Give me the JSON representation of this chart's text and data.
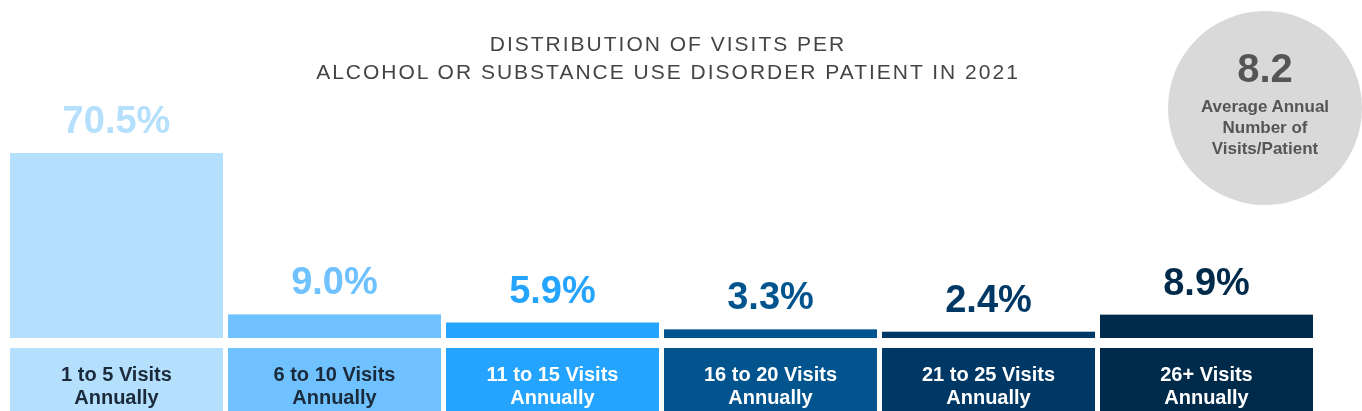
{
  "chart_data": {
    "type": "bar",
    "title": "DISTRIBUTION OF VISITS PER",
    "subtitle": "ALCOHOL OR SUBSTANCE USE DISORDER PATIENT IN 2021",
    "categories": [
      "1 to 5 Visits Annually",
      "6 to 10 Visits Annually",
      "11 to 15 Visits Annually",
      "16 to 20 Visits Annually",
      "21 to 25 Visits Annually",
      "26+ Visits Annually"
    ],
    "values": [
      70.5,
      9.0,
      5.9,
      3.3,
      2.4,
      8.9
    ],
    "value_labels": [
      "70.5%",
      "9.0%",
      "5.9%",
      "3.3%",
      "2.4%",
      "8.9%"
    ],
    "colors": [
      "#b5e0fd",
      "#6fc2ff",
      "#25a4ff",
      "#02548f",
      "#003865",
      "#002a4a"
    ],
    "annotations": [
      "8.2",
      "Average Annual Number of Visits/Patient"
    ]
  }
}
